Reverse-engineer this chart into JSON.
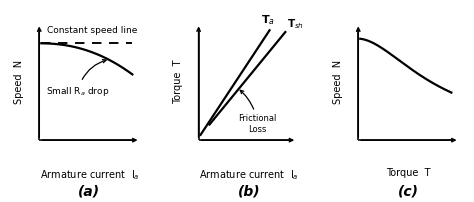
{
  "bg_color": "#ffffff",
  "subplot_labels": [
    "(a)",
    "(b)",
    "(c)"
  ],
  "subplot_label_fontsize": 10,
  "axis_label_fontsize": 7,
  "annotation_fontsize": 6.5,
  "line_color": "#000000",
  "line_width": 1.6,
  "plot_a": {
    "xlabel": "Armature current  I$_a$",
    "ylabel": "Speed  N",
    "dashed_label": "Constant speed line",
    "annotation": "Small R$_a$ drop"
  },
  "plot_b": {
    "xlabel": "Armature current  I$_a$",
    "ylabel": "Torque  T",
    "label_Ta": "T$_a$",
    "label_Tsh": "T$_{sh}$",
    "label_fric": "Frictional\nLoss"
  },
  "plot_c": {
    "xlabel": "Torque  T",
    "ylabel": "Speed  N"
  }
}
